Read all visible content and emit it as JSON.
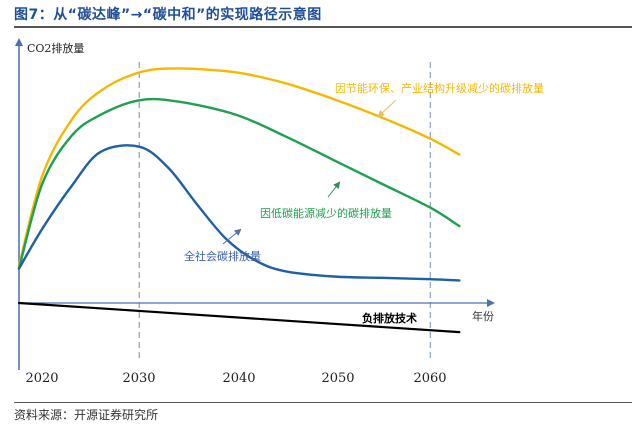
{
  "header": {
    "title": "图7：从“碳达峰”→“碳中和”的实现路径示意图"
  },
  "footer": {
    "source": "资料来源：开源证券研究所"
  },
  "chart_data": {
    "type": "line",
    "title": "图7：从“碳达峰”→“碳中和”的实现路径示意图",
    "xlabel": "年份",
    "ylabel": "CO2排放量",
    "x_ticks": [
      "2020",
      "2030",
      "2040",
      "2050",
      "2060"
    ],
    "x_range": [
      2017.6,
      2063.5
    ],
    "y_range": [
      -12,
      100
    ],
    "grid": false,
    "reference_lines": [
      {
        "x": 2030,
        "style": "dashed"
      },
      {
        "x": 2060,
        "style": "dashed"
      }
    ],
    "series": [
      {
        "name": "因节能环保、产业结构升级减少的碳排放量",
        "color": "#f5b800",
        "x": [
          2017.6,
          2020,
          2023,
          2026,
          2030,
          2034,
          2040,
          2045,
          2050,
          2055,
          2060,
          2063
        ],
        "y": [
          14,
          48,
          69,
          80,
          87,
          88.5,
          87,
          83,
          77,
          70,
          62,
          56
        ]
      },
      {
        "name": "因低碳能源减少的碳排放量",
        "color": "#1fa050",
        "x": [
          2017.6,
          2020,
          2023,
          2026,
          2030,
          2034,
          2040,
          2045,
          2050,
          2055,
          2060,
          2063
        ],
        "y": [
          13,
          45,
          63,
          71,
          76.5,
          76,
          71,
          63,
          54,
          45,
          36,
          29
        ]
      },
      {
        "name": "全社会碳排放量",
        "color": "#1f5fa8",
        "x": [
          2017.6,
          2020,
          2023,
          2026,
          2030,
          2033,
          2036,
          2039,
          2042,
          2045,
          2050,
          2055,
          2060,
          2063
        ],
        "y": [
          13,
          28,
          44,
          57,
          59,
          51,
          37,
          24,
          16,
          12,
          10,
          9.5,
          9,
          8.5
        ]
      },
      {
        "name": "负排放技术",
        "color": "#000000",
        "x": [
          2017.6,
          2030,
          2063
        ],
        "y": [
          0,
          -3,
          -11
        ]
      }
    ],
    "annotations": [
      {
        "text": "因节能环保、产业结构升级减少的碳排放量",
        "color": "#f5b800"
      },
      {
        "text": "因低碳能源减少的碳排放量",
        "color": "#1fa050"
      },
      {
        "text": "全社会碳排放量",
        "color": "#3a5fb0"
      },
      {
        "text": "负排放技术",
        "color": "#000000"
      }
    ]
  }
}
